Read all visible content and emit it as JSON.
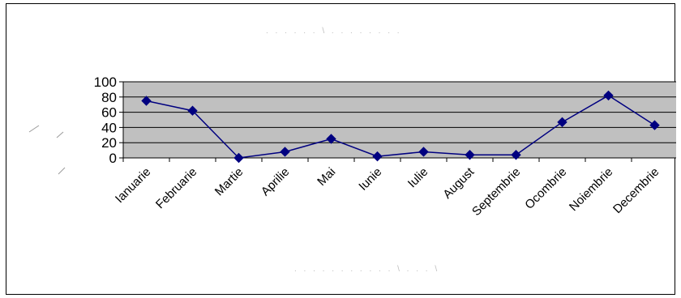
{
  "chart_data": {
    "type": "line",
    "title": "",
    "xlabel": "",
    "ylabel": "",
    "categories": [
      "Ianuarie",
      "Februarie",
      "Martie",
      "Aprilie",
      "Mai",
      "Iunie",
      "Iulie",
      "August",
      "Septembrie",
      "Ocombrie",
      "Noiembrie",
      "Decembrie"
    ],
    "series": [
      {
        "values": [
          75,
          62,
          0,
          8,
          25,
          2,
          8,
          4,
          4,
          47,
          82,
          43
        ],
        "color": "#000080",
        "marker": "diamond"
      }
    ],
    "yticks": [
      "0",
      "20",
      "40",
      "60",
      "80",
      "100"
    ],
    "ylim": [
      0,
      100
    ],
    "grid": true,
    "legend": "none",
    "plot_background": "#c0c0c0"
  }
}
